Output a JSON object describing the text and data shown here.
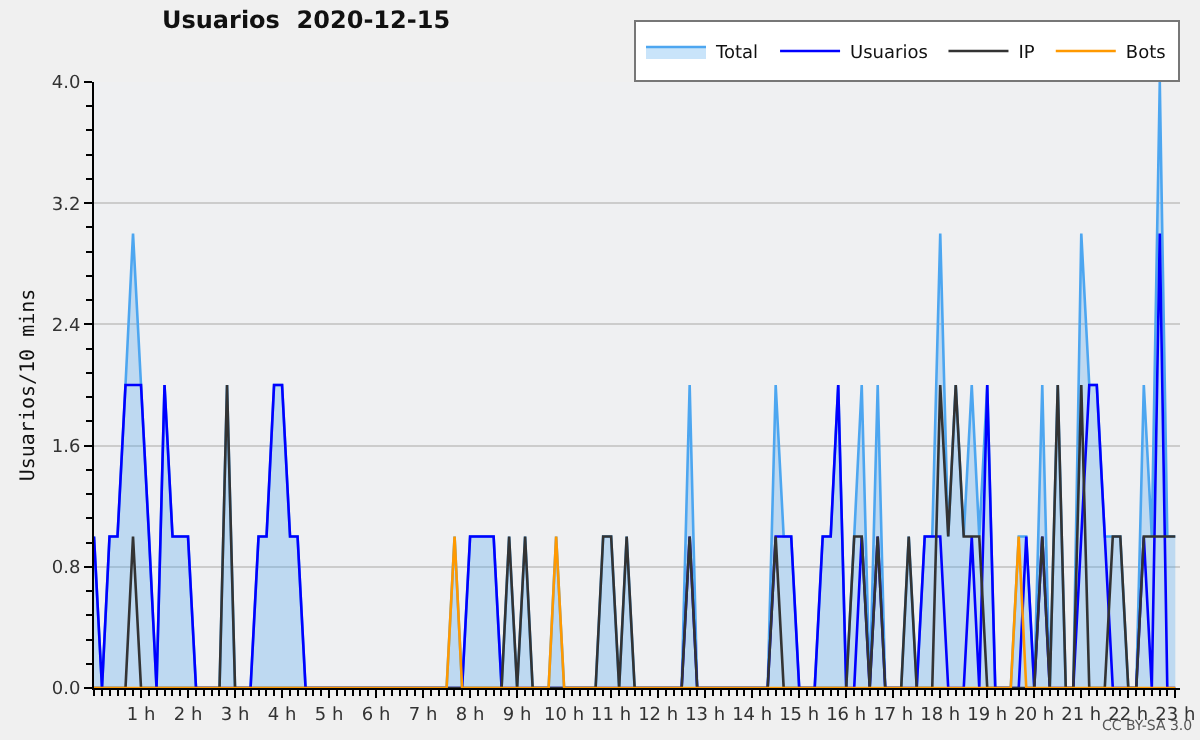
{
  "chart_data": {
    "type": "area",
    "title": "Usuarios  2020-12-15",
    "ylabel": "Usuarios/10 mins",
    "annotations": [
      "CC BY-SA 3.0"
    ],
    "x": [
      0,
      0.17,
      0.33,
      0.5,
      0.67,
      0.83,
      1,
      1.17,
      1.33,
      1.5,
      1.67,
      1.83,
      2,
      2.17,
      2.33,
      2.5,
      2.67,
      2.83,
      3,
      3.17,
      3.33,
      3.5,
      3.67,
      3.83,
      4,
      4.17,
      4.33,
      4.5,
      4.67,
      4.83,
      5,
      5.17,
      5.33,
      5.5,
      5.67,
      5.83,
      6,
      6.17,
      6.33,
      6.5,
      6.67,
      6.83,
      7,
      7.17,
      7.33,
      7.5,
      7.67,
      7.83,
      8,
      8.17,
      8.33,
      8.5,
      8.67,
      8.83,
      9,
      9.17,
      9.33,
      9.5,
      9.67,
      9.83,
      10,
      10.17,
      10.33,
      10.5,
      10.67,
      10.83,
      11,
      11.17,
      11.33,
      11.5,
      11.67,
      11.83,
      12,
      12.17,
      12.33,
      12.5,
      12.67,
      12.83,
      13,
      13.17,
      13.33,
      13.5,
      13.67,
      13.83,
      14,
      14.17,
      14.33,
      14.5,
      14.67,
      14.83,
      15,
      15.17,
      15.33,
      15.5,
      15.67,
      15.83,
      16,
      16.17,
      16.33,
      16.5,
      16.67,
      16.83,
      17,
      17.17,
      17.33,
      17.5,
      17.67,
      17.83,
      18,
      18.17,
      18.33,
      18.5,
      18.67,
      18.83,
      19,
      19.17,
      19.33,
      19.5,
      19.67,
      19.83,
      20,
      20.17,
      20.33,
      20.5,
      20.67,
      20.83,
      21,
      21.17,
      21.33,
      21.5,
      21.67,
      21.83,
      22,
      22.17,
      22.33,
      22.5,
      22.67,
      22.83,
      23
    ],
    "series": [
      {
        "name": "Total",
        "color": "#4da6f0",
        "values": [
          1,
          0,
          1,
          1,
          2,
          3,
          2,
          1,
          0,
          2,
          1,
          1,
          1,
          0,
          0,
          0,
          0,
          2,
          0,
          0,
          0,
          1,
          1,
          2,
          2,
          1,
          1,
          0,
          0,
          0,
          0,
          0,
          0,
          0,
          0,
          0,
          0,
          0,
          0,
          0,
          0,
          0,
          0,
          0,
          0,
          0,
          1,
          0,
          1,
          1,
          1,
          1,
          0,
          1,
          0,
          1,
          0,
          0,
          0,
          1,
          0,
          0,
          0,
          0,
          0,
          1,
          1,
          0,
          1,
          0,
          0,
          0,
          0,
          0,
          0,
          0,
          2,
          0,
          0,
          0,
          0,
          0,
          0,
          0,
          0,
          0,
          0,
          2,
          1,
          1,
          0,
          0,
          0,
          1,
          1,
          2,
          0,
          1,
          2,
          0,
          2,
          0,
          0,
          0,
          1,
          0,
          1,
          1,
          3,
          1,
          2,
          1,
          2,
          1,
          2,
          0,
          0,
          0,
          1,
          1,
          0,
          2,
          0,
          2,
          0,
          0,
          3,
          2,
          2,
          1,
          1,
          1,
          0,
          0,
          2,
          1,
          4,
          1,
          1
        ]
      },
      {
        "name": "Usuarios",
        "type": "line",
        "color": "#0000ff",
        "values": [
          1,
          0,
          1,
          1,
          2,
          2,
          2,
          1,
          0,
          2,
          1,
          1,
          1,
          0,
          0,
          0,
          0,
          0,
          0,
          0,
          0,
          1,
          1,
          2,
          2,
          1,
          1,
          0,
          0,
          0,
          0,
          0,
          0,
          0,
          0,
          0,
          0,
          0,
          0,
          0,
          0,
          0,
          0,
          0,
          0,
          0,
          0,
          0,
          1,
          1,
          1,
          1,
          0,
          0,
          0,
          0,
          0,
          0,
          0,
          0,
          0,
          0,
          0,
          0,
          0,
          0,
          0,
          0,
          0,
          0,
          0,
          0,
          0,
          0,
          0,
          0,
          1,
          0,
          0,
          0,
          0,
          0,
          0,
          0,
          0,
          0,
          0,
          1,
          1,
          1,
          0,
          0,
          0,
          1,
          1,
          2,
          0,
          0,
          1,
          0,
          1,
          0,
          0,
          0,
          0,
          0,
          1,
          1,
          1,
          0,
          0,
          0,
          1,
          0,
          2,
          0,
          0,
          0,
          0,
          1,
          0,
          1,
          0,
          0,
          0,
          0,
          1,
          2,
          2,
          1,
          0,
          0,
          0,
          0,
          1,
          0,
          3,
          0,
          0
        ]
      },
      {
        "name": "IP",
        "type": "line",
        "color": "#333333",
        "values": [
          0,
          0,
          0,
          0,
          0,
          1,
          0,
          0,
          0,
          0,
          0,
          0,
          0,
          0,
          0,
          0,
          0,
          2,
          0,
          0,
          0,
          0,
          0,
          0,
          0,
          0,
          0,
          0,
          0,
          0,
          0,
          0,
          0,
          0,
          0,
          0,
          0,
          0,
          0,
          0,
          0,
          0,
          0,
          0,
          0,
          0,
          0,
          0,
          0,
          0,
          0,
          0,
          0,
          1,
          0,
          1,
          0,
          0,
          0,
          0,
          0,
          0,
          0,
          0,
          0,
          1,
          1,
          0,
          1,
          0,
          0,
          0,
          0,
          0,
          0,
          0,
          1,
          0,
          0,
          0,
          0,
          0,
          0,
          0,
          0,
          0,
          0,
          1,
          0,
          0,
          0,
          0,
          0,
          0,
          0,
          0,
          0,
          1,
          1,
          0,
          1,
          0,
          0,
          0,
          1,
          0,
          0,
          0,
          2,
          1,
          2,
          1,
          1,
          1,
          0,
          0,
          0,
          0,
          0,
          0,
          0,
          1,
          0,
          2,
          0,
          0,
          2,
          0,
          0,
          0,
          1,
          1,
          0,
          0,
          1,
          1,
          1,
          1,
          1
        ]
      },
      {
        "name": "Bots",
        "type": "line",
        "color": "#ff9900",
        "values": [
          0,
          0,
          0,
          0,
          0,
          0,
          0,
          0,
          0,
          0,
          0,
          0,
          0,
          0,
          0,
          0,
          0,
          0,
          0,
          0,
          0,
          0,
          0,
          0,
          0,
          0,
          0,
          0,
          0,
          0,
          0,
          0,
          0,
          0,
          0,
          0,
          0,
          0,
          0,
          0,
          0,
          0,
          0,
          0,
          0,
          0,
          1,
          0,
          0,
          0,
          0,
          0,
          0,
          0,
          0,
          0,
          0,
          0,
          0,
          1,
          0,
          0,
          0,
          0,
          0,
          0,
          0,
          0,
          0,
          0,
          0,
          0,
          0,
          0,
          0,
          0,
          0,
          0,
          0,
          0,
          0,
          0,
          0,
          0,
          0,
          0,
          0,
          0,
          0,
          0,
          0,
          0,
          0,
          0,
          0,
          0,
          0,
          0,
          0,
          0,
          0,
          0,
          0,
          0,
          0,
          0,
          0,
          0,
          0,
          0,
          0,
          0,
          0,
          0,
          0,
          0,
          0,
          0,
          1,
          0,
          0,
          0,
          0,
          0,
          0,
          0,
          0,
          0,
          0,
          0,
          0,
          0,
          0,
          0,
          0,
          0,
          0,
          0,
          0
        ]
      }
    ],
    "xlim": [
      0,
      23.1
    ],
    "xticks": [
      {
        "value": 1,
        "label": "1 h"
      },
      {
        "value": 2,
        "label": "2 h"
      },
      {
        "value": 3,
        "label": "3 h"
      },
      {
        "value": 4,
        "label": "4 h"
      },
      {
        "value": 5,
        "label": "5 h"
      },
      {
        "value": 6,
        "label": "6 h"
      },
      {
        "value": 7,
        "label": "7 h"
      },
      {
        "value": 8,
        "label": "8 h"
      },
      {
        "value": 9,
        "label": "9 h"
      },
      {
        "value": 10,
        "label": "10 h"
      },
      {
        "value": 11,
        "label": "11 h"
      },
      {
        "value": 12,
        "label": "12 h"
      },
      {
        "value": 13,
        "label": "13 h"
      },
      {
        "value": 14,
        "label": "14 h"
      },
      {
        "value": 15,
        "label": "15 h"
      },
      {
        "value": 16,
        "label": "16 h"
      },
      {
        "value": 17,
        "label": "17 h"
      },
      {
        "value": 18,
        "label": "18 h"
      },
      {
        "value": 19,
        "label": "19 h"
      },
      {
        "value": 20,
        "label": "20 h"
      },
      {
        "value": 21,
        "label": "21 h"
      },
      {
        "value": 22,
        "label": "22 h"
      },
      {
        "value": 23,
        "label": "23 h"
      }
    ],
    "ylim": [
      0,
      4
    ],
    "yticks": [
      {
        "value": 0,
        "label": "0.0"
      },
      {
        "value": 0.8,
        "label": "0.8"
      },
      {
        "value": 1.6,
        "label": "1.6"
      },
      {
        "value": 2.4,
        "label": "2.4"
      },
      {
        "value": 3.2,
        "label": "3.2"
      },
      {
        "value": 4,
        "label": "4.0"
      }
    ],
    "grid": "y",
    "legend": "top right",
    "marker": "none",
    "line_style": "solid"
  }
}
